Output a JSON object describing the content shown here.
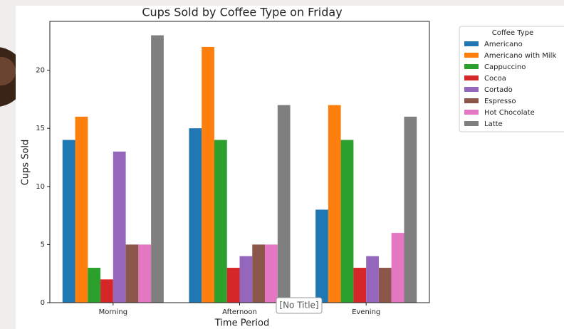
{
  "chart_data": {
    "type": "bar",
    "title": "Cups Sold by Coffee Type on Friday",
    "x_label": "Time Period",
    "y_label": "Cups Sold",
    "categories": [
      "Morning",
      "Afternoon",
      "Evening"
    ],
    "legend_title": "Coffee Type",
    "legend": "outside right",
    "series": [
      {
        "name": "Americano",
        "color": "#1f77b4",
        "values": [
          14,
          15,
          8
        ]
      },
      {
        "name": "Americano with Milk",
        "color": "#ff7f0e",
        "values": [
          16,
          22,
          17
        ]
      },
      {
        "name": "Cappuccino",
        "color": "#2ca02c",
        "values": [
          3,
          14,
          14
        ]
      },
      {
        "name": "Cocoa",
        "color": "#d62728",
        "values": [
          2,
          3,
          3
        ]
      },
      {
        "name": "Cortado",
        "color": "#9467bd",
        "values": [
          13,
          4,
          4
        ]
      },
      {
        "name": "Espresso",
        "color": "#8c564b",
        "values": [
          5,
          5,
          3
        ]
      },
      {
        "name": "Hot Chocolate",
        "color": "#e377c2",
        "values": [
          5,
          5,
          6
        ]
      },
      {
        "name": "Latte",
        "color": "#7f7f7f",
        "values": [
          23,
          17,
          16
        ]
      }
    ],
    "ylim": [
      0,
      24.2
    ],
    "yticks": [
      0,
      5,
      10,
      15,
      20
    ],
    "grid": false
  },
  "tooltip": "[No Title]"
}
